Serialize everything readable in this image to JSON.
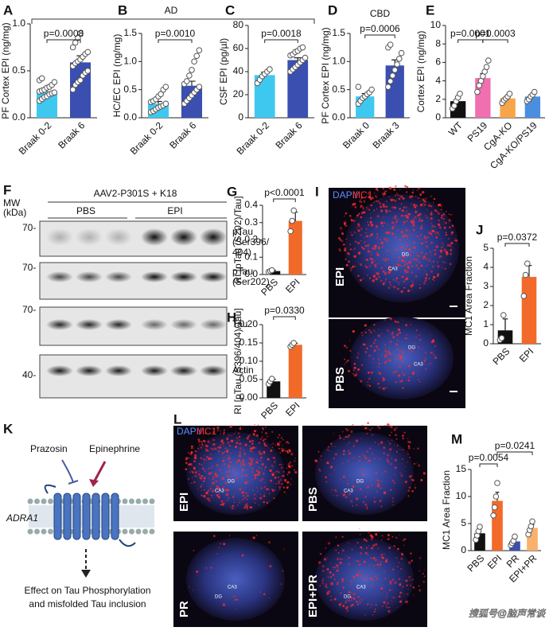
{
  "chart_data": [
    {
      "type": "bar",
      "panel": "A",
      "ylabel": "PF Cortex EPI (ng/mg)",
      "categories": [
        "Braak 0-2",
        "Braak 6"
      ],
      "values": [
        0.28,
        0.59
      ],
      "errors": [
        0.03,
        0.07
      ],
      "colors": [
        "#3fc8ef",
        "#3a4fb0"
      ],
      "points": [
        [
          0.18,
          0.2,
          0.22,
          0.23,
          0.25,
          0.26,
          0.27,
          0.28,
          0.29,
          0.3,
          0.32,
          0.33,
          0.35,
          0.38,
          0.4,
          0.42
        ],
        [
          0.3,
          0.35,
          0.38,
          0.4,
          0.45,
          0.48,
          0.5,
          0.55,
          0.58,
          0.6,
          0.62,
          0.65,
          0.68,
          0.7,
          0.75,
          0.8,
          0.85,
          0.9
        ]
      ],
      "ylim": [
        0,
        1.0
      ],
      "yticks": [
        {
          "value": 0,
          "label": "0.0"
        },
        0.5,
        {
          "value": 1,
          "label": "1.0"
        }
      ],
      "annotations": [
        "p=0.0008"
      ]
    },
    {
      "type": "bar",
      "panel": "B",
      "ylabel": "HC/EC EPI (ng/mg)",
      "categories": [
        "Braak 0-2",
        "Braak 6"
      ],
      "values": [
        0.25,
        0.57
      ],
      "errors": [
        0.04,
        0.08
      ],
      "colors": [
        "#3fc8ef",
        "#3a4fb0"
      ],
      "points": [
        [
          0.1,
          0.12,
          0.15,
          0.18,
          0.2,
          0.22,
          0.25,
          0.28,
          0.3,
          0.33,
          0.38,
          0.42,
          0.5,
          0.55
        ],
        [
          0.25,
          0.3,
          0.35,
          0.4,
          0.45,
          0.5,
          0.55,
          0.6,
          0.65,
          0.75,
          0.85,
          1.0,
          1.1,
          1.2
        ]
      ],
      "ylim": [
        0,
        1.5
      ],
      "yticks": [
        {
          "value": 0,
          "label": "0.0"
        },
        0.5,
        {
          "value": 1,
          "label": "1.0"
        },
        1.5
      ],
      "annotations": [
        "p=0.0010"
      ]
    },
    {
      "type": "bar",
      "panel": "C",
      "ylabel": "CSF EPI (pg/µl)",
      "categories": [
        "Braak 0-2",
        "Braak 6"
      ],
      "values": [
        37,
        50
      ],
      "errors": [
        2.5,
        2
      ],
      "colors": [
        "#3fc8ef",
        "#3a4fb0"
      ],
      "points": [
        [
          30,
          33,
          36,
          38,
          40,
          42
        ],
        [
          40,
          42,
          44,
          46,
          48,
          50,
          52,
          54,
          55,
          57,
          58,
          60,
          61
        ]
      ],
      "ylim": [
        0,
        80
      ],
      "yticks": [
        0,
        20,
        40,
        60,
        80
      ],
      "annotations": [
        "p=0.0018"
      ]
    },
    {
      "type": "bar",
      "panel": "D",
      "title": "CBD",
      "ylabel": "PF Cortex EPI (ng/mg)",
      "categories": [
        "Braak 0",
        "Braak 3"
      ],
      "values": [
        0.38,
        0.93
      ],
      "errors": [
        0.05,
        0.1
      ],
      "colors": [
        "#3fc8ef",
        "#3a4fb0"
      ],
      "points": [
        [
          0.25,
          0.3,
          0.35,
          0.38,
          0.42,
          0.45,
          0.5,
          0.55
        ],
        [
          0.55,
          0.65,
          0.75,
          0.85,
          0.95,
          1.05,
          1.15,
          1.25,
          1.3
        ]
      ],
      "ylim": [
        0,
        1.5
      ],
      "yticks": [
        {
          "value": 0,
          "label": "0.0"
        },
        0.5,
        {
          "value": 1,
          "label": "1.0"
        },
        1.5
      ],
      "annotations": [
        "p=0.0006"
      ]
    },
    {
      "type": "bar",
      "panel": "E",
      "ylabel": "Cortex EPI (ng/mg)",
      "categories": [
        "WT",
        "PS19",
        "CgA-KO",
        "CgA-KO/PS19"
      ],
      "values": [
        1.8,
        4.3,
        2.1,
        2.3
      ],
      "errors": [
        0.3,
        0.5,
        0.2,
        0.2
      ],
      "colors": [
        "#111111",
        "#ef6fb0",
        "#f7a54a",
        "#4a8ee0"
      ],
      "points": [
        [
          1.0,
          1.3,
          1.8,
          2.2,
          2.6
        ],
        [
          2.8,
          3.5,
          4.0,
          4.5,
          5.0,
          5.5,
          6.2
        ],
        [
          1.6,
          1.9,
          2.1,
          2.3,
          2.6
        ],
        [
          1.8,
          2.0,
          2.3,
          2.5,
          2.8
        ]
      ],
      "ylim": [
        0,
        10
      ],
      "yticks": [
        0,
        2,
        4,
        6,
        8,
        10
      ],
      "annotations": [
        "p=0.0001",
        "p=0.0003"
      ]
    },
    {
      "type": "bar",
      "panel": "G",
      "ylabel": "RI [pTau (S202)/Tau]",
      "categories": [
        "PBS",
        "EPI"
      ],
      "values": [
        0.02,
        0.31
      ],
      "errors": [
        0.005,
        0.05
      ],
      "colors": [
        "#111111",
        "#f26a2a"
      ],
      "points": [
        [
          0.015,
          0.02,
          0.025
        ],
        [
          0.25,
          0.31,
          0.37
        ]
      ],
      "ylim": [
        0,
        0.4
      ],
      "yticks": [
        {
          "value": 0,
          "label": "0.0"
        },
        0.1,
        0.2,
        0.3,
        0.4
      ],
      "annotations": [
        "p<0.0001"
      ]
    },
    {
      "type": "bar",
      "panel": "H",
      "ylabel": "RI [pTau (S396/404)/Tau]",
      "categories": [
        "PBS",
        "EPI"
      ],
      "values": [
        0.045,
        0.145
      ],
      "errors": [
        0.006,
        0.004
      ],
      "colors": [
        "#111111",
        "#f26a2a"
      ],
      "points": [
        [
          0.038,
          0.045,
          0.052
        ],
        [
          0.14,
          0.145,
          0.15
        ]
      ],
      "ylim": [
        0,
        0.2
      ],
      "yticks": [
        {
          "value": 0,
          "label": "0.00"
        },
        0.05,
        {
          "value": 0.1,
          "label": "0.10"
        },
        0.15,
        {
          "value": 0.2,
          "label": "0.20"
        }
      ],
      "annotations": [
        "p=0.0330"
      ]
    },
    {
      "type": "bar",
      "panel": "J",
      "ylabel": "MC1 Area Fraction",
      "categories": [
        "PBS",
        "EPI"
      ],
      "values": [
        0.7,
        3.5
      ],
      "errors": [
        0.6,
        0.6
      ],
      "colors": [
        "#111111",
        "#f26a2a"
      ],
      "points": [
        [
          0.2,
          0.3,
          1.5
        ],
        [
          2.5,
          3.6,
          4.2
        ]
      ],
      "ylim": [
        0,
        5
      ],
      "yticks": [
        0,
        1,
        2,
        3,
        4,
        5
      ],
      "annotations": [
        "p=0.0372"
      ]
    },
    {
      "type": "bar",
      "panel": "M",
      "ylabel": "MC1 Area Fraction",
      "categories": [
        "PBS",
        "EPI",
        "PR",
        "EPI+PR"
      ],
      "values": [
        3.2,
        9.2,
        1.7,
        4.2
      ],
      "errors": [
        0.8,
        1.6,
        0.5,
        0.6
      ],
      "colors": [
        "#111111",
        "#f26a2a",
        "#3a4fb0",
        "#f9b06a"
      ],
      "points": [
        [
          2.0,
          2.8,
          3.6,
          4.4
        ],
        [
          6.5,
          8.0,
          10.0,
          12.5
        ],
        [
          1.0,
          1.4,
          1.8,
          2.6
        ],
        [
          3.0,
          3.8,
          4.5,
          5.4
        ]
      ],
      "ylim": [
        0,
        15
      ],
      "yticks": [
        0,
        5,
        10,
        15
      ],
      "annotations": [
        "p=0.0054",
        "p=0.0241"
      ]
    }
  ],
  "group_label": "AD",
  "blot": {
    "panel": "F",
    "mw_label": [
      "MW",
      "(kDa)"
    ],
    "construct": "AAV2-P301S + K18",
    "groups": [
      "PBS",
      "EPI"
    ],
    "rows": [
      {
        "marker": "70-",
        "label": [
          "pTau",
          "(Ser396/",
          "404)"
        ]
      },
      {
        "marker": "70-",
        "label": [
          "pTau",
          "(Ser202)"
        ]
      },
      {
        "marker": "70-",
        "label": [
          "Tau"
        ]
      },
      {
        "marker": "40-",
        "label": [
          "Actin"
        ]
      }
    ]
  },
  "image_I": {
    "panel": "I",
    "stain": [
      "DAPI/",
      "MC1"
    ],
    "images": [
      {
        "label": "EPI",
        "regions": [
          "DG",
          "CA3"
        ]
      },
      {
        "label": "PBS",
        "regions": [
          "DG",
          "CA3"
        ]
      }
    ]
  },
  "image_L": {
    "panel": "L",
    "stain": [
      "DAPI/",
      "MC1"
    ],
    "images": [
      {
        "label": "EPI",
        "regions": [
          "DG",
          "CA3"
        ]
      },
      {
        "label": "PBS",
        "regions": [
          "DG",
          "CA3"
        ]
      },
      {
        "label": "PR",
        "regions": [
          "CA3",
          "DG"
        ]
      },
      {
        "label": "EPI+PR",
        "regions": [
          "CA3",
          "DG"
        ]
      }
    ]
  },
  "diagram_K": {
    "panel": "K",
    "drugs": [
      "Prazosin",
      "Epinephrine"
    ],
    "receptor": "ADRA1",
    "effect": [
      "Effect on Tau Phosphorylation",
      "and misfolded Tau inclusion"
    ]
  },
  "watermark": "搜狐号@脑声常谈"
}
